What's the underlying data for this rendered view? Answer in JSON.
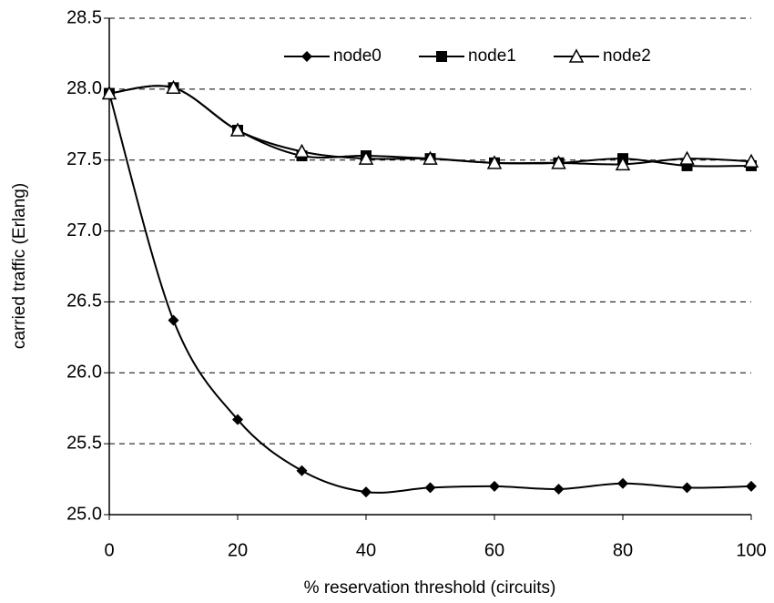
{
  "chart_data": {
    "type": "line",
    "x_label": "% reservation threshold (circuits)",
    "y_label": "carried traffic (Erlang)",
    "x": [
      0,
      10,
      20,
      30,
      40,
      50,
      60,
      70,
      80,
      90,
      100
    ],
    "series": [
      {
        "name": "node0",
        "color": "#000000",
        "marker": "diamond",
        "values": [
          27.97,
          26.37,
          25.67,
          25.31,
          25.16,
          25.19,
          25.2,
          25.18,
          25.22,
          25.19,
          25.2
        ]
      },
      {
        "name": "node1",
        "color": "#000000",
        "marker": "square",
        "values": [
          27.97,
          28.01,
          27.71,
          27.53,
          27.53,
          27.51,
          27.48,
          27.48,
          27.51,
          27.46,
          27.46
        ]
      },
      {
        "name": "node2",
        "color": "#000000",
        "marker": "triangle",
        "values": [
          27.97,
          28.01,
          27.71,
          27.56,
          27.51,
          27.51,
          27.48,
          27.48,
          27.47,
          27.51,
          27.49
        ]
      }
    ],
    "xlim": [
      0,
      100
    ],
    "xticks": [
      0,
      20,
      40,
      60,
      80,
      100
    ],
    "ylim": [
      25,
      28.5
    ],
    "yticks": [
      {
        "value": 25,
        "label": "25.0"
      },
      25.5,
      {
        "value": 26,
        "label": "26.0"
      },
      26.5,
      {
        "value": 27,
        "label": "27.0"
      },
      27.5,
      {
        "value": 28,
        "label": "28.0"
      },
      28.5
    ],
    "grid": true,
    "legend": "top"
  }
}
